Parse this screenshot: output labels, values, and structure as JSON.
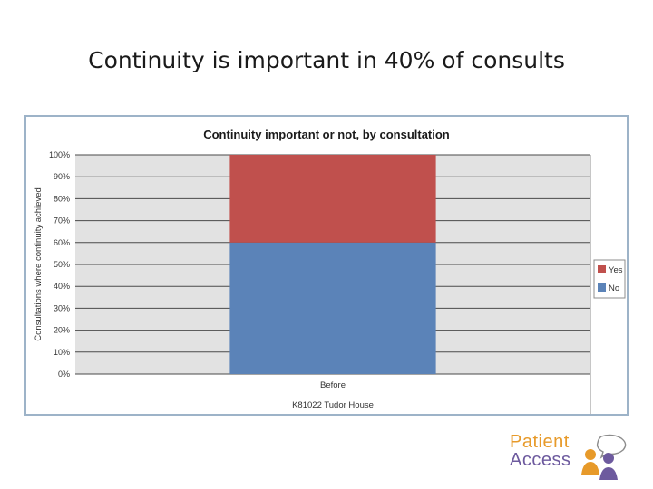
{
  "slide": {
    "title": "Continuity is important in 40% of consults"
  },
  "chart_data": {
    "type": "bar",
    "stacked": true,
    "percent_axis": true,
    "title": "Continuity important or not, by consultation",
    "ylabel": "Consultations where continuity achieved",
    "xlabel": "K81022 Tudor House",
    "categories": [
      "Before"
    ],
    "yticks": [
      "0%",
      "10%",
      "20%",
      "30%",
      "40%",
      "50%",
      "60%",
      "70%",
      "80%",
      "90%",
      "100%"
    ],
    "ylim": [
      0,
      100
    ],
    "series": [
      {
        "name": "No",
        "values": [
          60
        ],
        "color": "#5b83b8"
      },
      {
        "name": "Yes",
        "values": [
          40
        ],
        "color": "#c0504d"
      }
    ],
    "grid": true,
    "plot_background": "#e2e2e2",
    "legend": "right"
  },
  "logo": {
    "line1": "Patient",
    "line2": "Access",
    "colors": {
      "orange": "#e79a2a",
      "purple": "#6d5a9e",
      "grey": "#9b9b9b"
    }
  }
}
